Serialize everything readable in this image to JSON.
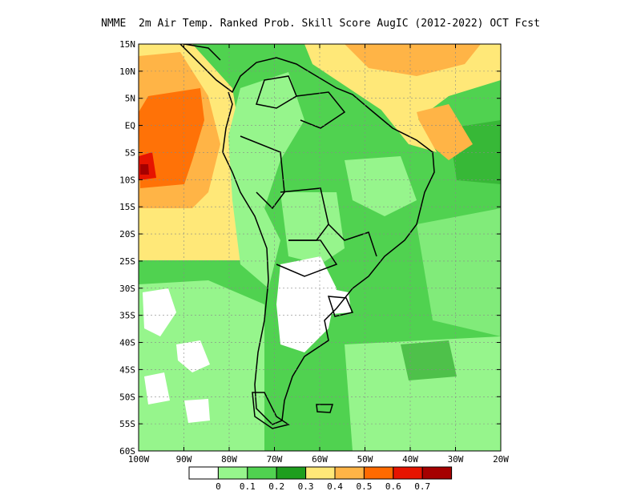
{
  "title": "NMME  2m Air Temp. Ranked Prob. Skill Score AugIC (2012-2022) OCT Fcst",
  "map": {
    "lat_labels": [
      "15N",
      "10N",
      "5N",
      "EQ",
      "5S",
      "10S",
      "15S",
      "20S",
      "25S",
      "30S",
      "35S",
      "40S",
      "45S",
      "50S",
      "55S",
      "60S"
    ],
    "lon_labels": [
      "100W",
      "90W",
      "80W",
      "70W",
      "60W",
      "50W",
      "40W",
      "30W",
      "20W"
    ],
    "lat_range": [
      -60,
      15
    ],
    "lon_range": [
      -100,
      -20
    ],
    "grid": true
  },
  "colorbar": {
    "labels": [
      "0",
      "0.1",
      "0.2",
      "0.3",
      "0.4",
      "0.5",
      "0.6",
      "0.7"
    ],
    "colors": [
      "#ffffff",
      "#96f58c",
      "#50d250",
      "#1e9e1e",
      "#ffe878",
      "#ffb446",
      "#ff6a00",
      "#e61400",
      "#a50000"
    ]
  }
}
